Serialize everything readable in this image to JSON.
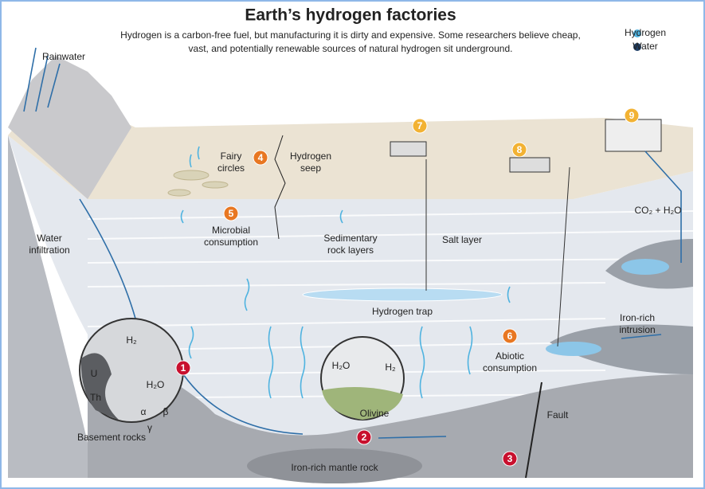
{
  "header": {
    "title": "Earth’s hydrogen factories",
    "subtitle": [
      "Hydrogen is a carbon-free fuel, but manufacturing it is dirty and expensive. Some researchers believe cheap,",
      "vast, and potentially renewable sources of natural hydrogen sit underground."
    ]
  },
  "legend": [
    {
      "label": "Hydrogen",
      "color": "#4fb3e0"
    },
    {
      "label": "Water",
      "color": "#1f3f66"
    }
  ],
  "labels": [
    [
      "Rainwater"
    ],
    [
      "Water",
      "infiltration"
    ],
    [
      "Fairy",
      "circles"
    ],
    [
      "Hydrogen",
      "seep"
    ],
    [
      "Microbial",
      "consumption"
    ],
    [
      "Sedimentary",
      "rock layers"
    ],
    [
      "Salt layer"
    ],
    [
      "Hydrogen trap"
    ],
    [
      "Iron-rich",
      "intrusion"
    ],
    [
      "Abiotic",
      "consumption"
    ],
    [
      "Fault"
    ],
    [
      "Basement rocks"
    ],
    [
      "Iron-rich mantle rock"
    ],
    [
      "Olivine"
    ],
    [
      "CO₂ + H₂O"
    ]
  ],
  "inset_left": [
    "U",
    "Th",
    "α",
    "β",
    "γ",
    "H₂",
    "H₂O"
  ],
  "inset_middle": [
    "H₂O",
    "H₂"
  ],
  "markers": [
    "1",
    "2",
    "3",
    "4",
    "5",
    "6",
    "7",
    "8",
    "9"
  ]
}
